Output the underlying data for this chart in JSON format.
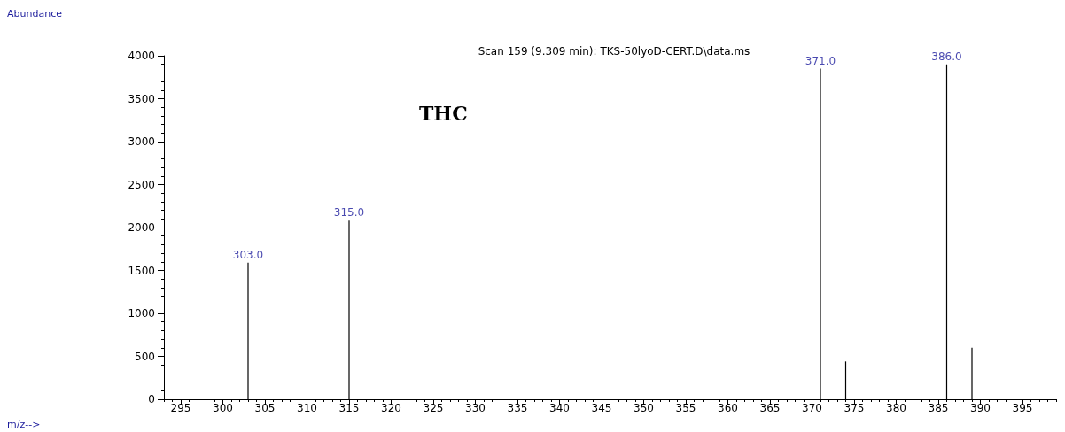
{
  "chart_data": {
    "type": "bar",
    "title": "Scan 159 (9.309 min): TKS-50lyoD-CERT.D\\data.ms",
    "x": [
      303,
      315,
      371,
      374,
      386,
      389
    ],
    "values": [
      1590,
      2080,
      3850,
      440,
      3900,
      600
    ],
    "color": "#000000",
    "xlim": [
      293,
      399
    ],
    "xticks": [
      295,
      300,
      305,
      310,
      315,
      320,
      325,
      330,
      335,
      340,
      345,
      350,
      355,
      360,
      365,
      370,
      375,
      380,
      385,
      390,
      395
    ],
    "ylim": [
      0,
      4000
    ],
    "yticks": [
      0,
      500,
      1000,
      1500,
      2000,
      2500,
      3000,
      3500,
      4000
    ],
    "grid": false,
    "annotations": [
      {
        "text": "303.0",
        "x": 303,
        "y": 1590
      },
      {
        "text": "315.0",
        "x": 315,
        "y": 2080
      },
      {
        "text": "371.0",
        "x": 371,
        "y": 3850
      },
      {
        "text": "386.0",
        "x": 386,
        "y": 3900
      },
      "Abundance",
      "THC",
      "m/z-->"
    ]
  }
}
